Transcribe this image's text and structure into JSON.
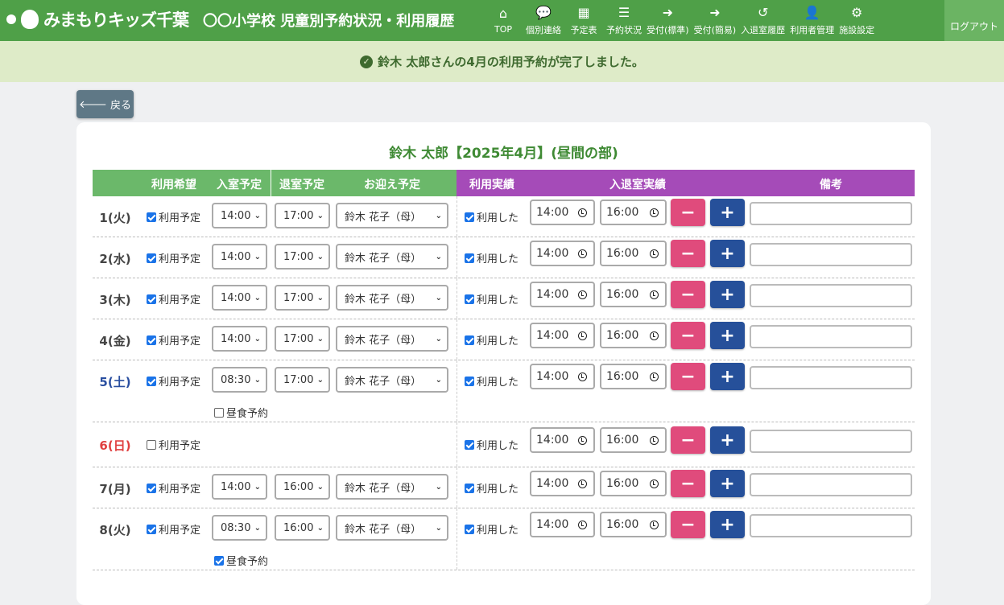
{
  "nav": {
    "logo": "みまもりキッズ千葉",
    "title": "〇〇小学校 児童別予約状況・利用履歴",
    "items": [
      {
        "label": "TOP",
        "icon": "home-icon",
        "glyph": "⌂"
      },
      {
        "label": "個別連絡",
        "icon": "chat-icon",
        "glyph": "💬"
      },
      {
        "label": "予定表",
        "icon": "calendar-icon",
        "glyph": "▦"
      },
      {
        "label": "予約状況",
        "icon": "list-icon",
        "glyph": "☰"
      },
      {
        "label": "受付(標準)",
        "icon": "sign-in-icon",
        "glyph": "➜"
      },
      {
        "label": "受付(簡易)",
        "icon": "sign-in-icon",
        "glyph": "➜"
      },
      {
        "label": "入退室履歴",
        "icon": "history-icon",
        "glyph": "↺"
      },
      {
        "label": "利用者管理",
        "icon": "user-edit-icon",
        "glyph": "👤"
      },
      {
        "label": "施設設定",
        "icon": "gear-icon",
        "glyph": "⚙"
      }
    ],
    "logout": "ログアウト"
  },
  "alert": "鈴木 太郎さんの4月の利用予約が完了しました。",
  "back": "戻る",
  "card_title": "鈴木 太郎【2025年4月】(昼間の部)",
  "headers": {
    "wish": "利用希望",
    "in_plan": "入室予定",
    "out_plan": "退室予定",
    "pickup": "お迎え予定",
    "actual": "利用実績",
    "inout": "入退室実績",
    "remarks": "備考"
  },
  "labels": {
    "plan": "利用予定",
    "used": "利用した",
    "lunch": "昼食予約",
    "minus": "−",
    "plus": "+"
  },
  "colors": {
    "saturday": "#2a4fa0",
    "sunday": "#e04040",
    "green": "#4fa048",
    "purple": "#a54bb8"
  },
  "rows": [
    {
      "day": "1(火)",
      "planned": true,
      "in": "14:00",
      "out": "17:00",
      "pickup": "鈴木 花子（母）",
      "used": true,
      "tin": "14:00",
      "tout": "16:00",
      "remarks": ""
    },
    {
      "day": "2(水)",
      "planned": true,
      "in": "14:00",
      "out": "17:00",
      "pickup": "鈴木 花子（母）",
      "used": true,
      "tin": "14:00",
      "tout": "16:00",
      "remarks": ""
    },
    {
      "day": "3(木)",
      "planned": true,
      "in": "14:00",
      "out": "17:00",
      "pickup": "鈴木 花子（母）",
      "used": true,
      "tin": "14:00",
      "tout": "16:00",
      "remarks": ""
    },
    {
      "day": "4(金)",
      "planned": true,
      "in": "14:00",
      "out": "17:00",
      "pickup": "鈴木 花子（母）",
      "used": true,
      "tin": "14:00",
      "tout": "16:00",
      "remarks": ""
    },
    {
      "day": "5(土)",
      "type": "sat",
      "planned": true,
      "in": "08:30",
      "out": "17:00",
      "pickup": "鈴木 花子（母）",
      "used": true,
      "tin": "14:00",
      "tout": "16:00",
      "remarks": "",
      "lunch": false
    },
    {
      "day": "6(日)",
      "type": "sun",
      "planned": false,
      "used": true,
      "tin": "14:00",
      "tout": "16:00",
      "remarks": ""
    },
    {
      "day": "7(月)",
      "planned": true,
      "in": "14:00",
      "out": "16:00",
      "pickup": "鈴木 花子（母）",
      "used": true,
      "tin": "14:00",
      "tout": "16:00",
      "remarks": ""
    },
    {
      "day": "8(火)",
      "planned": true,
      "in": "08:30",
      "out": "16:00",
      "pickup": "鈴木 花子（母）",
      "used": true,
      "tin": "14:00",
      "tout": "16:00",
      "remarks": "",
      "lunch": true
    }
  ]
}
